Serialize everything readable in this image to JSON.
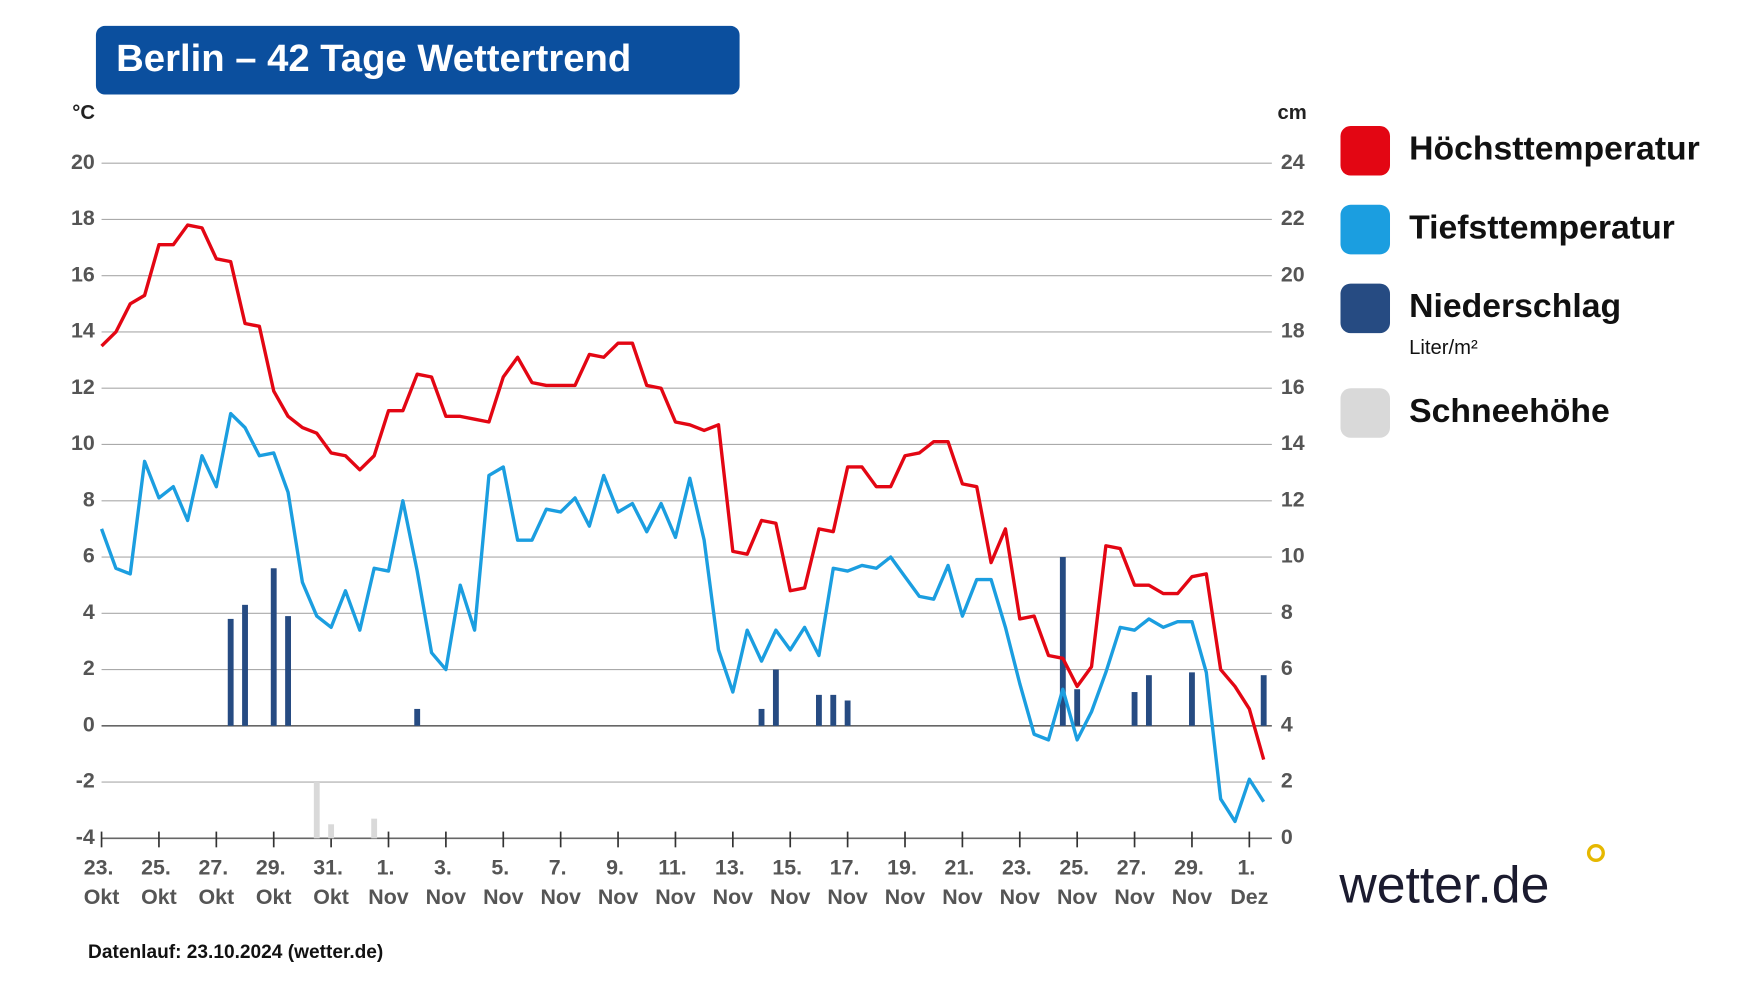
{
  "chart_data": {
    "type": "combo",
    "title": "Berlin – 42 Tage Wettertrend",
    "y_label": "°C",
    "y2_label": "cm",
    "categories": [
      "23. Okt",
      null,
      null,
      null,
      "25. Okt",
      null,
      null,
      null,
      "27. Okt",
      null,
      null,
      null,
      "29. Okt",
      null,
      null,
      null,
      "31. Okt",
      null,
      null,
      null,
      "1. Nov",
      null,
      null,
      null,
      "3. Nov",
      null,
      null,
      null,
      "5. Nov",
      null,
      null,
      null,
      "7. Nov",
      null,
      null,
      null,
      "9. Nov",
      null,
      null,
      null,
      "11. Nov",
      null,
      null,
      null,
      "13. Nov",
      null,
      null,
      null,
      "15. Nov",
      null,
      null,
      null,
      "17. Nov",
      null,
      null,
      null,
      "19. Nov",
      null,
      null,
      null,
      "21. Nov",
      null,
      null,
      null,
      "23. Nov",
      null,
      null,
      null,
      "25. Nov",
      null,
      null,
      null,
      "27. Nov",
      null,
      null,
      null,
      "29. Nov",
      null,
      null,
      null,
      "1. Dez",
      null
    ],
    "ylim": [
      -4,
      20
    ],
    "yticks": [
      20,
      18,
      16,
      14,
      12,
      10,
      8,
      6,
      4,
      2,
      0,
      -2,
      -4
    ],
    "y2lim": [
      0,
      24
    ],
    "y2ticks": [
      24,
      22,
      20,
      18,
      16,
      14,
      12,
      10,
      8,
      6,
      4,
      2,
      0
    ],
    "grid": true,
    "series": [
      {
        "name": "Höchsttemperatur",
        "type": "line",
        "color": "#e30613",
        "values": [
          13.5,
          14.0,
          15.0,
          15.3,
          17.1,
          17.1,
          17.8,
          17.7,
          16.6,
          16.5,
          14.3,
          14.2,
          11.9,
          11.0,
          10.6,
          10.4,
          9.7,
          9.6,
          9.1,
          9.6,
          11.2,
          11.2,
          12.5,
          12.4,
          11.0,
          11.0,
          10.9,
          10.8,
          12.4,
          13.1,
          12.2,
          12.1,
          12.1,
          12.1,
          13.2,
          13.1,
          13.6,
          13.6,
          12.1,
          12.0,
          10.8,
          10.7,
          10.5,
          10.7,
          6.2,
          6.1,
          7.3,
          7.2,
          4.8,
          4.9,
          7.0,
          6.9,
          9.2,
          9.2,
          8.5,
          8.5,
          9.6,
          9.7,
          10.1,
          10.1,
          8.6,
          8.5,
          5.8,
          7.0,
          3.8,
          3.9,
          2.5,
          2.4,
          1.4,
          2.1,
          6.4,
          6.3,
          5.0,
          5.0,
          4.7,
          4.7,
          5.3,
          5.4,
          2.0,
          1.4,
          0.6,
          -1.2
        ]
      },
      {
        "name": "Tiefsttemperatur",
        "type": "line",
        "color": "#1b9ee0",
        "values": [
          7.0,
          5.6,
          5.4,
          9.4,
          8.1,
          8.5,
          7.3,
          9.6,
          8.5,
          11.1,
          10.6,
          9.6,
          9.7,
          8.3,
          5.1,
          3.9,
          3.5,
          4.8,
          3.4,
          5.6,
          5.5,
          8.0,
          5.5,
          2.6,
          2.0,
          5.0,
          3.4,
          8.9,
          9.2,
          6.6,
          6.6,
          7.7,
          7.6,
          8.1,
          7.1,
          8.9,
          7.6,
          7.9,
          6.9,
          7.9,
          6.7,
          8.8,
          6.6,
          2.7,
          1.2,
          3.4,
          2.3,
          3.4,
          2.7,
          3.5,
          2.5,
          5.6,
          5.5,
          5.7,
          5.6,
          6.0,
          5.3,
          4.6,
          4.5,
          5.7,
          3.9,
          5.2,
          5.2,
          3.5,
          1.5,
          -0.3,
          -0.5,
          1.3,
          -0.5,
          0.5,
          1.9,
          3.5,
          3.4,
          3.8,
          3.5,
          3.7,
          3.7,
          1.9,
          -2.6,
          -3.4,
          -1.9,
          -2.7
        ]
      },
      {
        "name": "Niederschlag",
        "unit": "Liter/m²",
        "type": "bar",
        "color": "#264b82",
        "values": [
          0,
          0,
          0,
          0,
          0,
          0,
          0,
          0,
          0,
          3.8,
          4.3,
          0,
          5.6,
          3.9,
          0,
          0,
          0,
          0,
          0,
          0,
          0,
          0,
          0.6,
          0,
          0,
          0,
          0,
          0,
          0,
          0,
          0,
          0,
          0,
          0,
          0,
          0,
          0,
          0,
          0,
          0,
          0,
          0,
          0,
          0,
          0,
          0,
          0.6,
          2.0,
          0,
          0,
          1.1,
          1.1,
          0.9,
          0,
          0,
          0,
          0,
          0,
          0,
          0,
          0,
          0,
          0,
          0,
          0,
          0,
          0,
          6.0,
          1.3,
          0,
          0,
          0,
          1.2,
          1.8,
          0,
          0,
          1.9,
          0,
          0,
          0,
          0,
          1.8
        ]
      },
      {
        "name": "Schneehöhe",
        "type": "bar",
        "axis": "y2",
        "color": "#d9d9d9",
        "values": [
          0,
          0,
          0,
          0,
          0,
          0,
          0,
          0,
          0,
          0,
          0,
          0,
          0,
          0,
          0,
          2.0,
          0.5,
          0,
          0,
          0.7,
          0,
          0,
          0,
          0,
          0,
          0,
          0,
          0,
          0,
          0,
          0,
          0,
          0,
          0,
          0,
          0,
          0,
          0,
          0,
          0,
          0,
          0,
          0,
          0,
          0,
          0,
          0,
          0,
          0,
          0,
          0,
          0,
          0,
          0,
          0,
          0,
          0,
          0,
          0,
          0,
          0,
          0,
          0,
          0,
          0,
          0,
          0,
          0,
          0,
          0,
          0,
          0,
          0,
          0,
          0,
          0,
          0,
          0,
          0,
          0,
          0,
          0
        ]
      }
    ]
  },
  "footer": "Datenlauf: 23.10.2024 (wetter.de)",
  "logo": "wetter.de"
}
